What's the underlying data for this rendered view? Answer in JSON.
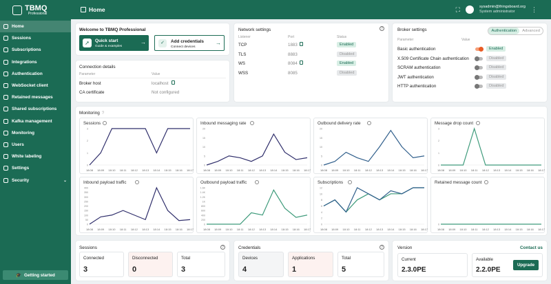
{
  "app": {
    "brand": "TBMQ",
    "edition": "Professional",
    "page_title": "Home"
  },
  "user": {
    "email": "sysadmin@thingsboard.org",
    "role": "System administrator"
  },
  "sidebar": {
    "items": [
      {
        "label": "Home",
        "icon": "home-icon"
      },
      {
        "label": "Sessions",
        "icon": "sessions-icon"
      },
      {
        "label": "Subscriptions",
        "icon": "subscriptions-icon"
      },
      {
        "label": "Integrations",
        "icon": "integrations-icon"
      },
      {
        "label": "Authentication",
        "icon": "shield-icon"
      },
      {
        "label": "WebSocket client",
        "icon": "websocket-icon"
      },
      {
        "label": "Retained messages",
        "icon": "retained-icon"
      },
      {
        "label": "Shared subscriptions",
        "icon": "shared-icon"
      },
      {
        "label": "Kafka management",
        "icon": "kafka-icon"
      },
      {
        "label": "Monitoring",
        "icon": "monitoring-icon"
      },
      {
        "label": "Users",
        "icon": "users-icon"
      },
      {
        "label": "White labeling",
        "icon": "palette-icon"
      },
      {
        "label": "Settings",
        "icon": "gear-icon"
      },
      {
        "label": "Security",
        "icon": "lock-icon"
      }
    ],
    "getting_started": "Getting started"
  },
  "welcome": {
    "title": "Welcome to TBMQ Professional",
    "quick_start": {
      "title": "Quick start",
      "sub": "Guide & examples"
    },
    "add_credentials": {
      "title": "Add credentials",
      "sub": "Connect devices"
    }
  },
  "connection": {
    "title": "Connection details",
    "col_param": "Parameter",
    "col_value": "Value",
    "rows": [
      {
        "param": "Broker host",
        "value": "localhost"
      },
      {
        "param": "CA certificate",
        "value": "Not configured"
      }
    ]
  },
  "network": {
    "title": "Network settings",
    "col_listener": "Listener",
    "col_port": "Port",
    "col_status": "Status",
    "rows": [
      {
        "listener": "TCP",
        "port": "1883",
        "status": "Enabled"
      },
      {
        "listener": "TLS",
        "port": "8883",
        "status": "Disabled"
      },
      {
        "listener": "WS",
        "port": "8084",
        "status": "Enabled"
      },
      {
        "listener": "WSS",
        "port": "8085",
        "status": "Disabled"
      }
    ]
  },
  "broker": {
    "title": "Broker settings",
    "tabs": [
      "Authentication",
      "Advanced"
    ],
    "col_param": "Parameter",
    "col_value": "Value",
    "rows": [
      {
        "param": "Basic authentication",
        "status": "Enabled"
      },
      {
        "param": "X.509 Certificate Chain authentication",
        "status": "Disabled"
      },
      {
        "param": "SCRAM authentication",
        "status": "Disabled"
      },
      {
        "param": "JWT authentication",
        "status": "Disabled"
      },
      {
        "param": "HTTP authentication",
        "status": "Disabled"
      }
    ]
  },
  "monitoring": {
    "title": "Monitoring"
  },
  "chart_data": [
    {
      "type": "line",
      "title": "Sessions",
      "x": [
        "18:08",
        "18:09",
        "18:10",
        "18:11",
        "18:12",
        "18:13",
        "18:14",
        "18:15",
        "18:16",
        "18:17"
      ],
      "y_ticks": [
        "0",
        "1",
        "2",
        "3"
      ],
      "ylim": [
        0,
        3
      ],
      "values": [
        0,
        1,
        3,
        3,
        3,
        3,
        1,
        3,
        3,
        3
      ],
      "color": "#2f2e6b"
    },
    {
      "type": "line",
      "title": "Inbound messaging rate",
      "x": [
        "18:08",
        "18:09",
        "18:10",
        "18:11",
        "18:12",
        "18:13",
        "18:14",
        "18:15",
        "18:16",
        "18:17"
      ],
      "y_ticks": [
        "0",
        "5",
        "10",
        "15",
        "20"
      ],
      "ylim": [
        0,
        20
      ],
      "values": [
        0,
        2,
        5,
        4,
        2,
        5,
        17,
        7,
        3,
        4
      ],
      "color": "#2f2e6b"
    },
    {
      "type": "line",
      "title": "Outbound delivery rate",
      "x": [
        "18:08",
        "18:09",
        "18:10",
        "18:11",
        "18:12",
        "18:13",
        "18:14",
        "18:15",
        "18:16",
        "18:17"
      ],
      "y_ticks": [
        "0",
        "5",
        "10",
        "15",
        "20"
      ],
      "ylim": [
        0,
        20
      ],
      "values": [
        0,
        2,
        7,
        4,
        2,
        10,
        19,
        10,
        4,
        5
      ],
      "color": "#2f5e8b"
    },
    {
      "type": "line",
      "title": "Message drop count",
      "x": [
        "18:08",
        "18:09",
        "18:10",
        "18:11",
        "18:12",
        "18:13",
        "18:14",
        "18:15",
        "18:16",
        "18:17"
      ],
      "y_ticks": [
        "0",
        "1",
        "2",
        "3"
      ],
      "ylim": [
        0,
        3
      ],
      "values": [
        0,
        0,
        0,
        3,
        0,
        0,
        0,
        0,
        0,
        0
      ],
      "color": "#3d9a7a"
    },
    {
      "type": "line",
      "title": "Inbound payload traffic",
      "x": [
        "18:08",
        "18:09",
        "18:10",
        "18:11",
        "18:12",
        "18:13",
        "18:14",
        "18:15",
        "18:16",
        "18:17"
      ],
      "y_ticks": [
        "0",
        "50",
        "100",
        "150",
        "200",
        "250",
        "300",
        "350",
        "400"
      ],
      "ylim": [
        0,
        400
      ],
      "values": [
        0,
        80,
        100,
        150,
        100,
        50,
        400,
        150,
        40,
        50
      ],
      "color": "#2f2e6b"
    },
    {
      "type": "line",
      "title": "Outbound payload traffic",
      "x": [
        "18:08",
        "18:09",
        "18:10",
        "18:11",
        "18:12",
        "18:13",
        "18:14",
        "18:15",
        "18:16",
        "18:17"
      ],
      "y_ticks": [
        "0",
        "200",
        "400",
        "600",
        "800",
        "1K",
        "1.2K",
        "1.4K",
        "1.6K"
      ],
      "ylim": [
        0,
        1600
      ],
      "values": [
        0,
        0,
        0,
        0,
        500,
        400,
        1500,
        700,
        300,
        400
      ],
      "color": "#3d9a7a"
    },
    {
      "type": "line",
      "title": "Subscriptions",
      "x": [
        "18:08",
        "18:09",
        "18:10",
        "18:11",
        "18:12",
        "18:13",
        "18:14",
        "18:15",
        "18:16",
        "18:17"
      ],
      "y_ticks": [
        "0",
        "2",
        "4",
        "6",
        "8",
        "10",
        "12"
      ],
      "ylim": [
        0,
        12
      ],
      "values": [
        6,
        8,
        4,
        12,
        10,
        8,
        11,
        10,
        12,
        12
      ],
      "color": "#2f5e8b",
      "series2": [
        6,
        8,
        4,
        8,
        10,
        8,
        10,
        10,
        12,
        12
      ],
      "color2": "#3d9a7a"
    },
    {
      "type": "line",
      "title": "Retained message count",
      "x": [
        "18:08",
        "18:09",
        "18:10",
        "18:11",
        "18:12",
        "18:13",
        "18:14",
        "18:15",
        "18:16",
        "18:17"
      ],
      "y_ticks": [
        "0"
      ],
      "ylim": [
        0,
        1
      ],
      "values": [
        0,
        0,
        0,
        0,
        0,
        0,
        0,
        0,
        0,
        0
      ],
      "color": "#3d9a7a"
    }
  ],
  "sessions": {
    "title": "Sessions",
    "stats": [
      {
        "label": "Connected",
        "value": "3"
      },
      {
        "label": "Disconnected",
        "value": "0"
      },
      {
        "label": "Total",
        "value": "3"
      }
    ]
  },
  "credentials": {
    "title": "Credentials",
    "stats": [
      {
        "label": "Devices",
        "value": "4"
      },
      {
        "label": "Applications",
        "value": "1"
      },
      {
        "label": "Total",
        "value": "5"
      }
    ]
  },
  "version": {
    "title": "Version",
    "contact": "Contact us",
    "current_label": "Current",
    "current": "2.3.0PE",
    "available_label": "Available",
    "available": "2.2.0PE",
    "upgrade": "Upgrade"
  },
  "colors": {
    "brand": "#1b6b54",
    "enabled_bg": "#d7eee4",
    "disabled_bg": "#e6e8ea",
    "accent_orange": "#e95c25"
  }
}
